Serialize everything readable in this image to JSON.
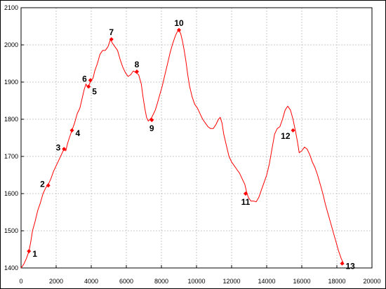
{
  "chart_data": {
    "type": "line",
    "title": "",
    "xlabel": "",
    "ylabel": "",
    "xlim": [
      0,
      20000
    ],
    "ylim": [
      1400,
      2100
    ],
    "grid": true,
    "colors": {
      "line": "#ff0000",
      "marker": "#ff0000",
      "grid": "#c8c8c8",
      "frame": "#000000",
      "text": "#000000"
    },
    "x_ticks": [
      "0",
      "2000",
      "4000",
      "6000",
      "8000",
      "10000",
      "12000",
      "14000",
      "16000",
      "18000",
      "20000"
    ],
    "y_ticks": [
      "1400",
      "1500",
      "1600",
      "1700",
      "1800",
      "1900",
      "2000",
      "2100"
    ],
    "series": [
      {
        "x": [
          0,
          150,
          300,
          450,
          550,
          650,
          800,
          950,
          1100,
          1250,
          1400,
          1550,
          1700,
          1850,
          2000,
          2150,
          2300,
          2450,
          2550,
          2650,
          2750,
          2900,
          3050,
          3200,
          3350,
          3500,
          3600,
          3700,
          3800,
          3900,
          4000,
          4100,
          4200,
          4350,
          4500,
          4650,
          4800,
          4950,
          5100,
          5200,
          5350,
          5500,
          5650,
          5800,
          5950,
          6100,
          6250,
          6400,
          6550,
          6700,
          6850,
          6950,
          7050,
          7150,
          7250,
          7350,
          7450,
          7550,
          7650,
          7750,
          7900,
          8050,
          8200,
          8350,
          8500,
          8650,
          8800,
          8900,
          9000,
          9100,
          9200,
          9300,
          9400,
          9500,
          9600,
          9750,
          9900,
          10050,
          10200,
          10350,
          10500,
          10650,
          10800,
          10950,
          11100,
          11250,
          11350,
          11450,
          11550,
          11700,
          11850,
          12000,
          12150,
          12300,
          12450,
          12600,
          12750,
          12850,
          12950,
          13100,
          13250,
          13400,
          13550,
          13700,
          13850,
          14000,
          14150,
          14300,
          14450,
          14600,
          14750,
          14900,
          15050,
          15200,
          15350,
          15500,
          15650,
          15750,
          15850,
          16000,
          16150,
          16300,
          16450,
          16600,
          16750,
          16900,
          17050,
          17200,
          17350,
          17500,
          17650,
          17800,
          17950,
          18100,
          18250,
          18400
        ],
        "y": [
          1400,
          1410,
          1425,
          1445,
          1470,
          1500,
          1525,
          1555,
          1575,
          1600,
          1615,
          1625,
          1640,
          1660,
          1675,
          1690,
          1705,
          1720,
          1715,
          1735,
          1750,
          1770,
          1790,
          1815,
          1830,
          1860,
          1880,
          1895,
          1885,
          1895,
          1905,
          1910,
          1930,
          1950,
          1975,
          1985,
          1985,
          1995,
          2015,
          2005,
          1995,
          1985,
          1960,
          1940,
          1925,
          1915,
          1920,
          1930,
          1925,
          1920,
          1895,
          1860,
          1830,
          1805,
          1795,
          1800,
          1805,
          1815,
          1825,
          1840,
          1865,
          1890,
          1920,
          1950,
          1980,
          2005,
          2025,
          2035,
          2040,
          2030,
          2010,
          1985,
          1955,
          1920,
          1890,
          1860,
          1840,
          1830,
          1815,
          1800,
          1790,
          1780,
          1775,
          1775,
          1785,
          1800,
          1805,
          1790,
          1760,
          1730,
          1700,
          1685,
          1675,
          1665,
          1655,
          1640,
          1625,
          1605,
          1590,
          1580,
          1580,
          1578,
          1590,
          1610,
          1630,
          1650,
          1680,
          1720,
          1760,
          1775,
          1780,
          1800,
          1825,
          1835,
          1825,
          1800,
          1765,
          1740,
          1710,
          1715,
          1725,
          1720,
          1705,
          1685,
          1670,
          1650,
          1625,
          1600,
          1570,
          1545,
          1520,
          1495,
          1470,
          1445,
          1425,
          1410
        ]
      }
    ],
    "points": [
      {
        "label": "1",
        "x": 450,
        "y": 1445
      },
      {
        "label": "2",
        "x": 1550,
        "y": 1622
      },
      {
        "label": "3",
        "x": 2450,
        "y": 1720
      },
      {
        "label": "4",
        "x": 2900,
        "y": 1770
      },
      {
        "label": "5",
        "x": 3850,
        "y": 1888
      },
      {
        "label": "6",
        "x": 3950,
        "y": 1905
      },
      {
        "label": "7",
        "x": 5150,
        "y": 2015
      },
      {
        "label": "8",
        "x": 6600,
        "y": 1928
      },
      {
        "label": "9",
        "x": 7450,
        "y": 1798
      },
      {
        "label": "10",
        "x": 9000,
        "y": 2040
      },
      {
        "label": "11",
        "x": 12800,
        "y": 1600
      },
      {
        "label": "12",
        "x": 15500,
        "y": 1770
      },
      {
        "label": "13",
        "x": 18300,
        "y": 1412
      }
    ]
  }
}
